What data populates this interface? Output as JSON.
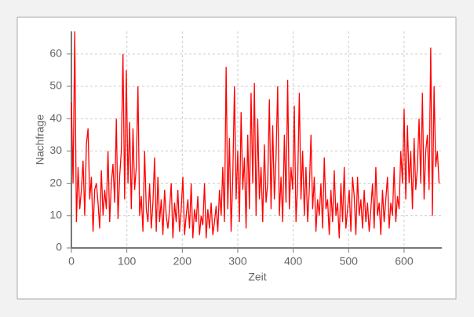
{
  "chart_data": {
    "type": "line",
    "x_label": "Zeit",
    "y_label": "Nachfrage",
    "xlim": [
      0,
      668
    ],
    "ylim": [
      0,
      67
    ],
    "xticks": [
      0,
      100,
      200,
      300,
      400,
      500,
      600
    ],
    "yticks": [
      0,
      10,
      20,
      30,
      40,
      50,
      60
    ],
    "grid": true,
    "x": [
      0,
      3,
      6,
      9,
      12,
      15,
      18,
      21,
      24,
      27,
      30,
      33,
      36,
      39,
      42,
      45,
      48,
      51,
      54,
      57,
      60,
      63,
      66,
      69,
      72,
      75,
      78,
      81,
      84,
      87,
      90,
      93,
      96,
      99,
      102,
      105,
      108,
      111,
      114,
      117,
      120,
      123,
      126,
      129,
      132,
      135,
      138,
      141,
      144,
      147,
      150,
      153,
      156,
      159,
      162,
      165,
      168,
      171,
      174,
      177,
      180,
      183,
      186,
      189,
      192,
      195,
      198,
      201,
      204,
      207,
      210,
      213,
      216,
      219,
      222,
      225,
      228,
      231,
      234,
      237,
      240,
      243,
      246,
      249,
      252,
      255,
      258,
      261,
      264,
      267,
      270,
      273,
      276,
      279,
      282,
      285,
      288,
      291,
      294,
      297,
      300,
      303,
      306,
      309,
      312,
      315,
      318,
      321,
      324,
      327,
      330,
      333,
      336,
      339,
      342,
      345,
      348,
      351,
      354,
      357,
      360,
      363,
      366,
      369,
      372,
      375,
      378,
      381,
      384,
      387,
      390,
      393,
      396,
      399,
      402,
      405,
      408,
      411,
      414,
      417,
      420,
      423,
      426,
      429,
      432,
      435,
      438,
      441,
      444,
      447,
      450,
      453,
      456,
      459,
      462,
      465,
      468,
      471,
      474,
      477,
      480,
      483,
      486,
      489,
      492,
      495,
      498,
      501,
      504,
      507,
      510,
      513,
      516,
      519,
      522,
      525,
      528,
      531,
      534,
      537,
      540,
      543,
      546,
      549,
      552,
      555,
      558,
      561,
      564,
      567,
      570,
      573,
      576,
      579,
      582,
      585,
      588,
      591,
      594,
      597,
      600,
      603,
      606,
      609,
      612,
      615,
      618,
      621,
      624,
      627,
      630,
      633,
      636,
      639,
      642,
      645,
      648,
      651,
      654,
      657,
      660,
      663
    ],
    "series": [
      {
        "name": "Nachfrage",
        "color": "#ff0000",
        "values": [
          45,
          20,
          67,
          8,
          25,
          12,
          18,
          27,
          10,
          32,
          37,
          15,
          22,
          5,
          18,
          20,
          14,
          6,
          24,
          10,
          18,
          12,
          30,
          8,
          20,
          26,
          14,
          40,
          9,
          22,
          30,
          60,
          15,
          55,
          20,
          39,
          12,
          37,
          18,
          25,
          50,
          10,
          16,
          5,
          30,
          12,
          8,
          20,
          6,
          14,
          28,
          5,
          22,
          8,
          15,
          4,
          18,
          10,
          6,
          12,
          20,
          3,
          14,
          8,
          18,
          5,
          12,
          22,
          4,
          10,
          15,
          6,
          20,
          3,
          12,
          8,
          16,
          4,
          10,
          7,
          20,
          3,
          12,
          6,
          14,
          4,
          8,
          13,
          5,
          18,
          10,
          25,
          8,
          56,
          12,
          34,
          5,
          22,
          50,
          15,
          30,
          8,
          42,
          18,
          28,
          6,
          35,
          12,
          48,
          20,
          51,
          10,
          40,
          15,
          25,
          8,
          32,
          14,
          20,
          46,
          12,
          38,
          15,
          28,
          50,
          10,
          22,
          8,
          35,
          14,
          52,
          12,
          25,
          18,
          44,
          8,
          20,
          48,
          15,
          30,
          10,
          25,
          8,
          18,
          35,
          12,
          22,
          5,
          15,
          10,
          20,
          6,
          28,
          12,
          15,
          4,
          18,
          8,
          24,
          10,
          14,
          3,
          20,
          8,
          25,
          6,
          12,
          18,
          5,
          22,
          16,
          4,
          22,
          10,
          15,
          6,
          18,
          8,
          14,
          5,
          12,
          20,
          6,
          25,
          10,
          14,
          4,
          18,
          8,
          15,
          22,
          6,
          14,
          10,
          25,
          8,
          16,
          12,
          30,
          20,
          43,
          15,
          38,
          20,
          30,
          12,
          34,
          18,
          25,
          40,
          20,
          48,
          15,
          30,
          35,
          18,
          62,
          10,
          50,
          25,
          30,
          20
        ]
      }
    ]
  }
}
